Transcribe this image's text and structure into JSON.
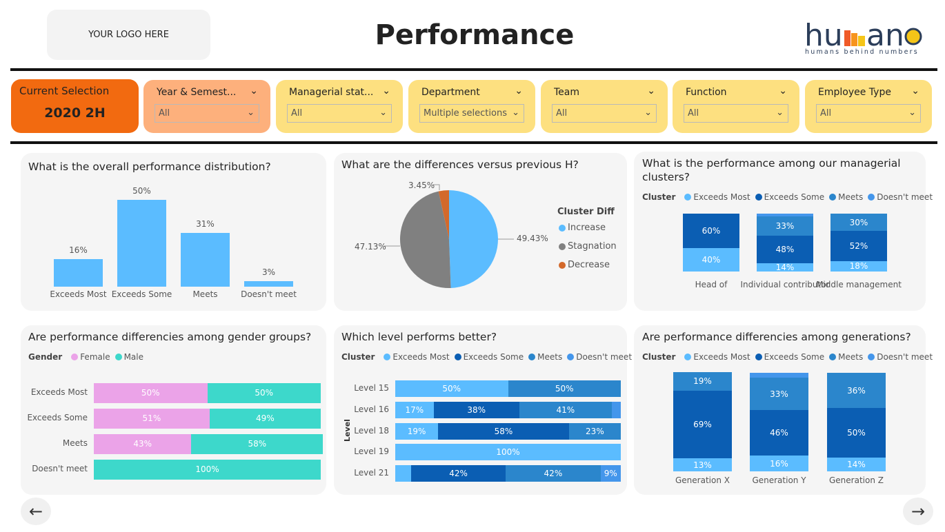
{
  "header": {
    "logo_placeholder": "YOUR LOGO HERE",
    "title": "Performance",
    "brand": "humano",
    "brand_tagline": "humans behind numbers"
  },
  "filters": {
    "current_selection": {
      "label": "Current Selection",
      "value": "2020 2H",
      "color": "#f26a10"
    },
    "slicers": [
      {
        "label": "Year & Semest...",
        "value": "All",
        "color": "#fdb07c"
      },
      {
        "label": "Managerial stat...",
        "value": "All",
        "color": "#fde080"
      },
      {
        "label": "Department",
        "value": "Multiple selections",
        "color": "#fde080"
      },
      {
        "label": "Team",
        "value": "All",
        "color": "#fde080"
      },
      {
        "label": "Function",
        "value": "All",
        "color": "#fde080"
      },
      {
        "label": "Employee Type",
        "value": "All",
        "color": "#fde080"
      }
    ]
  },
  "colors": {
    "exceeds_most": "#5bbcff",
    "exceeds_some": "#0b5eb3",
    "meets": "#2b86cc",
    "doesnt_meet": "#4496eb",
    "female": "#eba3e8",
    "male": "#3dd8cb",
    "increase": "#5bbcff",
    "stagnation": "#808080",
    "decrease": "#d3692b"
  },
  "cluster_legend": {
    "title": "Cluster",
    "items": [
      "Exceeds Most",
      "Exceeds Some",
      "Meets",
      "Doesn't meet"
    ]
  },
  "chart_data": [
    {
      "id": "distribution",
      "type": "bar",
      "title": "What is the overall performance distribution?",
      "categories": [
        "Exceeds Most",
        "Exceeds Some",
        "Meets",
        "Doesn't meet"
      ],
      "values": [
        16,
        50,
        31,
        3
      ],
      "labels": [
        "16%",
        "50%",
        "31%",
        "3%"
      ]
    },
    {
      "id": "vs_previous",
      "type": "pie",
      "title": "What are the differences versus previous H?",
      "legend_title": "Cluster Diff",
      "categories": [
        "Increase",
        "Stagnation",
        "Decrease"
      ],
      "values": [
        49.43,
        47.13,
        3.45
      ],
      "labels": [
        "49.43%",
        "47.13%",
        "3.45%"
      ]
    },
    {
      "id": "managerial",
      "type": "bar",
      "stacked": true,
      "title": "What is the performance among our managerial clusters?",
      "categories": [
        "Head of",
        "Individual contributor",
        "Middle management"
      ],
      "series": [
        {
          "name": "Exceeds Most",
          "values": [
            40,
            14,
            18
          ]
        },
        {
          "name": "Exceeds Some",
          "values": [
            60,
            48,
            52
          ]
        },
        {
          "name": "Meets",
          "values": [
            0,
            33,
            30
          ]
        },
        {
          "name": "Doesn't meet",
          "values": [
            0,
            5,
            0
          ]
        }
      ]
    },
    {
      "id": "gender",
      "type": "bar",
      "stacked": true,
      "orientation": "horizontal",
      "title": "Are performance differencies among gender groups?",
      "legend_title": "Gender",
      "categories": [
        "Exceeds Most",
        "Exceeds Some",
        "Meets",
        "Doesn't meet"
      ],
      "series": [
        {
          "name": "Female",
          "values": [
            50,
            51,
            43,
            0
          ]
        },
        {
          "name": "Male",
          "values": [
            50,
            49,
            58,
            100
          ]
        }
      ]
    },
    {
      "id": "level",
      "type": "bar",
      "stacked": true,
      "orientation": "horizontal",
      "title": "Which level performs better?",
      "ylabel": "Level",
      "categories": [
        "Level 15",
        "Level 16",
        "Level 18",
        "Level 19",
        "Level 21"
      ],
      "series": [
        {
          "name": "Exceeds Most",
          "values": [
            50,
            17,
            19,
            100,
            7
          ]
        },
        {
          "name": "Exceeds Some",
          "values": [
            0,
            38,
            58,
            0,
            42
          ]
        },
        {
          "name": "Meets",
          "values": [
            50,
            41,
            23,
            0,
            42
          ]
        },
        {
          "name": "Doesn't meet",
          "values": [
            0,
            4,
            0,
            0,
            9
          ]
        }
      ]
    },
    {
      "id": "generation",
      "type": "bar",
      "stacked": true,
      "title": "Are performance differencies among generations?",
      "categories": [
        "Generation X",
        "Generation Y",
        "Generation Z"
      ],
      "series": [
        {
          "name": "Exceeds Most",
          "values": [
            13,
            16,
            14
          ]
        },
        {
          "name": "Exceeds Some",
          "values": [
            69,
            46,
            50
          ]
        },
        {
          "name": "Meets",
          "values": [
            19,
            33,
            36
          ]
        },
        {
          "name": "Doesn't meet",
          "values": [
            0,
            5,
            0
          ]
        }
      ]
    }
  ],
  "nav": {
    "back": "←",
    "forward": "→"
  }
}
